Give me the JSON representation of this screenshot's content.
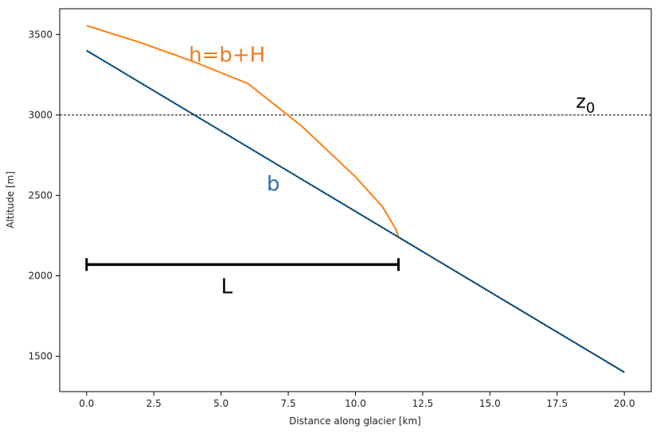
{
  "chart_data": {
    "type": "line",
    "title": "",
    "xlabel": "Distance along glacier [km]",
    "ylabel": "Altitude [m]",
    "xlim": [
      -1.0,
      21.0
    ],
    "ylim": [
      1280,
      3660
    ],
    "xticks": [
      0.0,
      2.5,
      5.0,
      7.5,
      10.0,
      12.5,
      15.0,
      17.5,
      20.0
    ],
    "xtick_labels": [
      "0.0",
      "2.5",
      "5.0",
      "7.5",
      "10.0",
      "12.5",
      "15.0",
      "17.5",
      "20.0"
    ],
    "yticks": [
      1500,
      2000,
      2500,
      3000,
      3500
    ],
    "ytick_labels": [
      "1500",
      "2000",
      "2500",
      "3000",
      "3500"
    ],
    "grid": false,
    "legend": "none",
    "series": [
      {
        "label": "b",
        "color": "#1f77b4",
        "style": "solid with black dotted overlay",
        "x": [
          0.0,
          20.0
        ],
        "y": [
          3400,
          1400
        ]
      },
      {
        "label": "h=b+H",
        "color": "#ff7f0e",
        "style": "solid",
        "x": [
          0.0,
          2.0,
          4.0,
          6.0,
          8.0,
          10.0,
          11.0,
          11.5,
          11.6,
          12.0,
          16.0,
          20.0
        ],
        "y": [
          3555,
          3450,
          3330,
          3195,
          2930,
          2615,
          2430,
          2290,
          2240,
          2200,
          1800,
          1400
        ]
      }
    ],
    "reference_lines": [
      {
        "label": "z0",
        "orientation": "horizontal",
        "y": 3000,
        "style": "dashed",
        "color": "#000000"
      }
    ],
    "annotations": [
      {
        "text": "h=b+H",
        "color": "#e87d24",
        "x": 3.8,
        "y": 3330
      },
      {
        "text": "b",
        "color": "#2f6fb0",
        "x": 6.7,
        "y": 2530
      },
      {
        "text": "z",
        "subscript": "0",
        "color": "#000000",
        "x": 18.2,
        "y": 3045
      },
      {
        "text": "L",
        "color": "#000000",
        "x": 5.0,
        "y": 1890
      }
    ],
    "bracket": {
      "label": "L",
      "x_start": 0.0,
      "x_end": 11.6,
      "y": 2070,
      "color": "#000000"
    }
  }
}
